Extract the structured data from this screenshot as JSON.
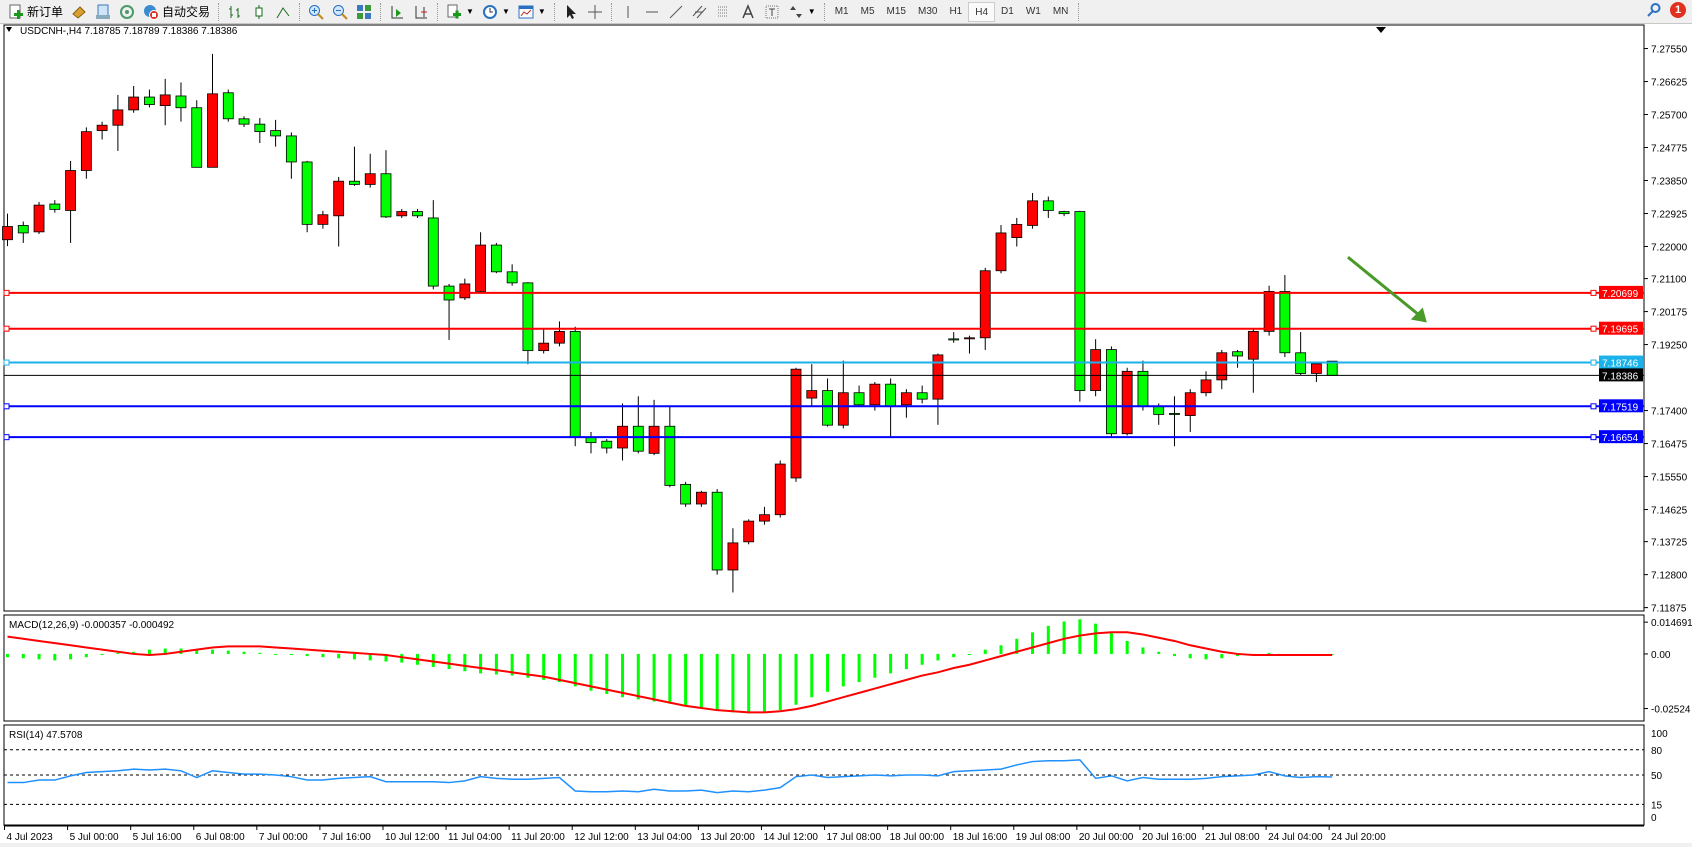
{
  "toolbar": {
    "new_order": "新订单",
    "auto_trading": "自动交易",
    "timeframes": [
      "M1",
      "M5",
      "M15",
      "M30",
      "H1",
      "H4",
      "D1",
      "W1",
      "MN"
    ],
    "active_timeframe": "H4",
    "notification_count": "1",
    "icons": [
      "new-order-icon",
      "market-watch-icon",
      "navigator-icon",
      "signals-icon",
      "auto-trading-icon",
      "bar-chart-icon",
      "candlestick-icon",
      "line-chart-icon",
      "zoom-in-icon",
      "zoom-out-icon",
      "tile-windows-icon",
      "auto-scroll-icon",
      "chart-shift-icon",
      "indicators-icon",
      "periods-icon",
      "templates-icon",
      "cursor-icon",
      "crosshair-icon",
      "vertical-line-icon",
      "horizontal-line-icon",
      "trendline-icon",
      "equidistant-channel-icon",
      "fibonacci-icon",
      "text-icon",
      "text-label-icon",
      "arrows-icon",
      "search-icon",
      "notification-icon"
    ]
  },
  "chart_header": "USDCNH-,H4  7.18785 7.18789 7.18386 7.18386",
  "colors": {
    "bull": "#ff0000",
    "bear": "#00ff00",
    "resistance": "#ff0000",
    "mid": "#1ab2e8",
    "support": "#0000ff",
    "current": "#000000",
    "signal": "#ff0000",
    "rsi": "#1e90ff",
    "arrow": "#4a9a2a"
  },
  "chart_data": [
    {
      "type": "candlestick",
      "symbol": "USDCNH-",
      "timeframe": "H4",
      "ylim": [
        7.1178,
        7.2821
      ],
      "price_ticks": [
        "7.27550",
        "7.26625",
        "7.25700",
        "7.24775",
        "7.23850",
        "7.22925",
        "7.22000",
        "7.21100",
        "7.20175",
        "7.19250",
        "7.17400",
        "7.16475",
        "7.15550",
        "7.14625",
        "7.13725",
        "7.12800",
        "7.11875"
      ],
      "time_labels": [
        "4 Jul 2023",
        "5 Jul 00:00",
        "5 Jul 16:00",
        "6 Jul 08:00",
        "7 Jul 00:00",
        "7 Jul 16:00",
        "10 Jul 12:00",
        "11 Jul 04:00",
        "11 Jul 20:00",
        "12 Jul 12:00",
        "13 Jul 04:00",
        "13 Jul 20:00",
        "14 Jul 12:00",
        "17 Jul 08:00",
        "18 Jul 00:00",
        "18 Jul 16:00",
        "19 Jul 08:00",
        "20 Jul 00:00",
        "20 Jul 16:00",
        "21 Jul 08:00",
        "24 Jul 04:00",
        "24 Jul 20:00"
      ],
      "ohlc": [
        [
          7.2219,
          7.2292,
          7.2201,
          7.2256
        ],
        [
          7.2259,
          7.227,
          7.221,
          7.2238
        ],
        [
          7.2241,
          7.2325,
          7.2235,
          7.2316
        ],
        [
          7.2319,
          7.233,
          7.2295,
          7.2304
        ],
        [
          7.2301,
          7.244,
          7.221,
          7.2413
        ],
        [
          7.2413,
          7.2534,
          7.239,
          7.2522
        ],
        [
          7.2525,
          7.255,
          7.25,
          7.254
        ],
        [
          7.254,
          7.2625,
          7.2468,
          7.2583
        ],
        [
          7.2583,
          7.265,
          7.2575,
          7.2619
        ],
        [
          7.2619,
          7.264,
          7.259,
          7.2598
        ],
        [
          7.2595,
          7.267,
          7.254,
          7.2625
        ],
        [
          7.2622,
          7.266,
          7.255,
          7.2589
        ],
        [
          7.2589,
          7.261,
          7.2422,
          7.2422
        ],
        [
          7.2422,
          7.274,
          7.2422,
          7.2628
        ],
        [
          7.2631,
          7.264,
          7.255,
          7.2558
        ],
        [
          7.2558,
          7.2565,
          7.2535,
          7.2543
        ],
        [
          7.2543,
          7.256,
          7.249,
          7.2522
        ],
        [
          7.2525,
          7.2555,
          7.248,
          7.251
        ],
        [
          7.251,
          7.252,
          7.239,
          7.2437
        ],
        [
          7.2437,
          7.244,
          7.224,
          7.2262
        ],
        [
          7.2262,
          7.23,
          7.225,
          7.2289
        ],
        [
          7.2286,
          7.2395,
          7.22,
          7.2383
        ],
        [
          7.2383,
          7.248,
          7.237,
          7.2374
        ],
        [
          7.2374,
          7.246,
          7.2365,
          7.2404
        ],
        [
          7.2404,
          7.247,
          7.228,
          7.2283
        ],
        [
          7.2286,
          7.2305,
          7.228,
          7.2298
        ],
        [
          7.2298,
          7.2305,
          7.228,
          7.2286
        ],
        [
          7.228,
          7.233,
          7.208,
          7.2089
        ],
        [
          7.2089,
          7.2095,
          7.1938,
          7.205
        ],
        [
          7.2056,
          7.211,
          7.205,
          7.2095
        ],
        [
          7.2074,
          7.224,
          7.207,
          7.2204
        ],
        [
          7.2204,
          7.221,
          7.2125,
          7.2129
        ],
        [
          7.2129,
          7.215,
          7.209,
          7.2098
        ],
        [
          7.2098,
          7.21,
          7.187,
          7.1908
        ],
        [
          7.1908,
          7.197,
          7.19,
          7.1929
        ],
        [
          7.1929,
          7.199,
          7.192,
          7.1962
        ],
        [
          7.1962,
          7.1975,
          7.164,
          7.1666
        ],
        [
          7.1666,
          7.168,
          7.162,
          7.165
        ],
        [
          7.1654,
          7.166,
          7.162,
          7.1635
        ],
        [
          7.1635,
          7.176,
          7.16,
          7.1696
        ],
        [
          7.1696,
          7.178,
          7.162,
          7.1626
        ],
        [
          7.162,
          7.177,
          7.1615,
          7.1696
        ],
        [
          7.1696,
          7.175,
          7.1525,
          7.153
        ],
        [
          7.1533,
          7.154,
          7.147,
          7.1478
        ],
        [
          7.1478,
          7.1515,
          7.147,
          7.1511
        ],
        [
          7.1511,
          7.152,
          7.128,
          7.1293
        ],
        [
          7.1293,
          7.141,
          7.123,
          7.1369
        ],
        [
          7.1372,
          7.1435,
          7.1365,
          7.143
        ],
        [
          7.143,
          7.147,
          7.142,
          7.1448
        ],
        [
          7.1448,
          7.16,
          7.144,
          7.159
        ],
        [
          7.1551,
          7.186,
          7.154,
          7.1856
        ],
        [
          7.1775,
          7.187,
          7.175,
          7.1796
        ],
        [
          7.1796,
          7.183,
          7.1695,
          7.1699
        ],
        [
          7.1699,
          7.188,
          7.169,
          7.179
        ],
        [
          7.179,
          7.181,
          7.175,
          7.1756
        ],
        [
          7.1756,
          7.182,
          7.174,
          7.1814
        ],
        [
          7.1814,
          7.183,
          7.1665,
          7.1753
        ],
        [
          7.1756,
          7.18,
          7.172,
          7.179
        ],
        [
          7.179,
          7.181,
          7.176,
          7.1772
        ],
        [
          7.1772,
          7.19,
          7.17,
          7.1896
        ],
        [
          7.1941,
          7.196,
          7.193,
          7.1938
        ],
        [
          7.1941,
          7.195,
          7.19,
          7.1944
        ],
        [
          7.1944,
          7.214,
          7.191,
          7.2132
        ],
        [
          7.2132,
          7.226,
          7.2125,
          7.2238
        ],
        [
          7.2225,
          7.228,
          7.22,
          7.2262
        ],
        [
          7.2259,
          7.235,
          7.225,
          7.2328
        ],
        [
          7.2328,
          7.234,
          7.228,
          7.2301
        ],
        [
          7.2298,
          7.23,
          7.2285,
          7.2292
        ],
        [
          7.2298,
          7.23,
          7.1765,
          7.1796
        ],
        [
          7.1796,
          7.194,
          7.178,
          7.1911
        ],
        [
          7.1911,
          7.192,
          7.1665,
          7.1675
        ],
        [
          7.1675,
          7.186,
          7.167,
          7.185
        ],
        [
          7.185,
          7.188,
          7.174,
          7.1753
        ],
        [
          7.1753,
          7.176,
          7.17,
          7.1729
        ],
        [
          7.1732,
          7.178,
          7.164,
          7.1729
        ],
        [
          7.1726,
          7.18,
          7.168,
          7.179
        ],
        [
          7.179,
          7.185,
          7.178,
          7.1826
        ],
        [
          7.1826,
          7.191,
          7.18,
          7.1902
        ],
        [
          7.1905,
          7.191,
          7.186,
          7.1893
        ],
        [
          7.1884,
          7.197,
          7.179,
          7.1962
        ],
        [
          7.1962,
          7.209,
          7.195,
          7.2074
        ],
        [
          7.2074,
          7.212,
          7.189,
          7.1902
        ],
        [
          7.1902,
          7.196,
          7.184,
          7.1844
        ],
        [
          7.1844,
          7.1875,
          7.182,
          7.1871
        ],
        [
          7.18785,
          7.18789,
          7.18386,
          7.18386
        ]
      ],
      "horizontal_lines": [
        {
          "price": "7.20699",
          "role": "resistance"
        },
        {
          "price": "7.19695",
          "role": "resistance"
        },
        {
          "price": "7.18746",
          "role": "mid"
        },
        {
          "price": "7.18386",
          "role": "current"
        },
        {
          "price": "7.17519",
          "role": "support"
        },
        {
          "price": "7.16654",
          "role": "support"
        }
      ],
      "annotation": {
        "type": "arrow",
        "direction": "down-right",
        "from": {
          "candle": 85,
          "price": 7.217
        },
        "to": {
          "candle": 90,
          "price": 7.1987
        }
      }
    },
    {
      "type": "macd",
      "label": "MACD(12,26,9) -0.000357 -0.000492",
      "ylim": [
        -0.031,
        0.018
      ],
      "ticks": [
        "0.014691",
        "0.00",
        "-0.02524"
      ],
      "histogram": [
        -0.0015,
        -0.002,
        -0.0025,
        -0.003,
        -0.0025,
        -0.0015,
        -0.0005,
        0.0005,
        0.001,
        0.002,
        0.0025,
        0.0025,
        0.002,
        0.002,
        0.0015,
        0.001,
        0.0005,
        0,
        -0.0005,
        -0.001,
        -0.0015,
        -0.002,
        -0.0025,
        -0.003,
        -0.0035,
        -0.004,
        -0.005,
        -0.006,
        -0.007,
        -0.008,
        -0.009,
        -0.0095,
        -0.01,
        -0.011,
        -0.012,
        -0.013,
        -0.015,
        -0.017,
        -0.0185,
        -0.02,
        -0.021,
        -0.022,
        -0.023,
        -0.024,
        -0.025,
        -0.026,
        -0.027,
        -0.0275,
        -0.027,
        -0.026,
        -0.0235,
        -0.02,
        -0.0175,
        -0.015,
        -0.013,
        -0.011,
        -0.009,
        -0.007,
        -0.005,
        -0.003,
        -0.0015,
        0,
        0.002,
        0.004,
        0.007,
        0.01,
        0.013,
        0.015,
        0.016,
        0.014,
        0.01,
        0.006,
        0.003,
        0.001,
        -0.001,
        -0.002,
        -0.0025,
        -0.002,
        -0.001,
        -0.0005,
        0.0005,
        0,
        0,
        -0.000357,
        -0.000357
      ],
      "signal": [
        0.008,
        0.007,
        0.006,
        0.005,
        0.004,
        0.003,
        0.002,
        0.001,
        0,
        -0.0005,
        0,
        0.001,
        0.002,
        0.003,
        0.0035,
        0.0035,
        0.0035,
        0.003,
        0.0025,
        0.002,
        0.0015,
        0.001,
        0.0005,
        0,
        -0.0005,
        -0.0015,
        -0.0025,
        -0.0035,
        -0.0045,
        -0.0055,
        -0.0065,
        -0.0075,
        -0.0085,
        -0.0095,
        -0.0105,
        -0.012,
        -0.0135,
        -0.015,
        -0.0165,
        -0.018,
        -0.0195,
        -0.021,
        -0.0225,
        -0.024,
        -0.025,
        -0.026,
        -0.0265,
        -0.027,
        -0.027,
        -0.0265,
        -0.0255,
        -0.024,
        -0.022,
        -0.02,
        -0.018,
        -0.016,
        -0.014,
        -0.012,
        -0.01,
        -0.0085,
        -0.0065,
        -0.005,
        -0.003,
        -0.001,
        0.001,
        0.003,
        0.005,
        0.007,
        0.0085,
        0.0095,
        0.01,
        0.01,
        0.009,
        0.0075,
        0.006,
        0.004,
        0.0025,
        0.001,
        0,
        -0.0005,
        -0.0005,
        -0.0005,
        -0.0005,
        -0.000492,
        -0.000492
      ]
    },
    {
      "type": "rsi",
      "label": "RSI(14) 47.5708",
      "ylim": [
        0,
        100
      ],
      "ticks": [
        "100",
        "80",
        "50",
        "15",
        "0"
      ],
      "levels": [
        80,
        50,
        15
      ],
      "values": [
        41,
        41,
        44,
        44,
        49,
        53,
        54,
        55,
        57,
        56,
        57,
        55,
        47,
        55,
        53,
        51,
        51,
        50,
        48,
        44,
        44,
        46,
        47,
        48,
        42,
        42,
        42,
        42,
        41,
        43,
        48,
        46,
        45,
        45,
        46,
        47,
        31,
        30,
        30,
        31,
        30,
        33,
        31,
        31,
        32,
        29,
        31,
        30,
        32,
        35,
        48,
        50,
        47,
        48,
        49,
        50,
        49,
        50,
        50,
        49,
        54,
        55,
        56,
        57,
        62,
        66,
        67,
        67,
        68,
        46,
        49,
        43,
        47,
        45,
        45,
        45,
        46,
        48,
        49,
        50,
        54,
        49,
        47,
        48,
        47.5708
      ]
    }
  ]
}
